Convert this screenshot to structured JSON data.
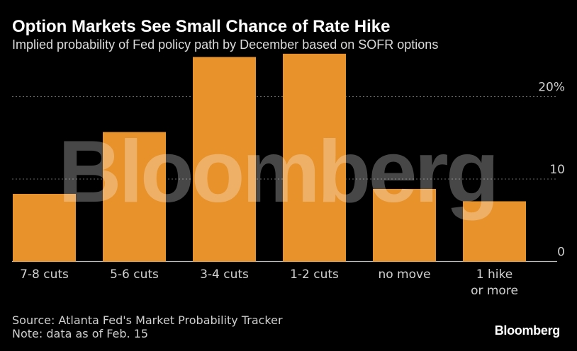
{
  "header": {
    "title": "Option Markets See Small Chance of Rate Hike",
    "subtitle": "Implied probability of Fed policy path by December based on SOFR options"
  },
  "watermark": "Bloomberg",
  "footer": {
    "source": "Source: Atlanta Fed's Market Probability Tracker",
    "note": "Note: data as of Feb. 15",
    "brand": "Bloomberg"
  },
  "colors": {
    "background": "#000000",
    "bar": "#e8922b",
    "grid": "#666666"
  },
  "chart_data": {
    "type": "bar",
    "categories": [
      "7-8 cuts",
      "5-6 cuts",
      "3-4 cuts",
      "1-2 cuts",
      "no move",
      "1 hike or more"
    ],
    "values": [
      8.2,
      15.7,
      24.8,
      25.2,
      8.8,
      7.3
    ],
    "ylim": [
      0,
      26
    ],
    "yticks": [
      0,
      10,
      20
    ],
    "ytick_labels": [
      "0",
      "10",
      "20%"
    ],
    "grid": true,
    "y_axis_side": "right"
  }
}
